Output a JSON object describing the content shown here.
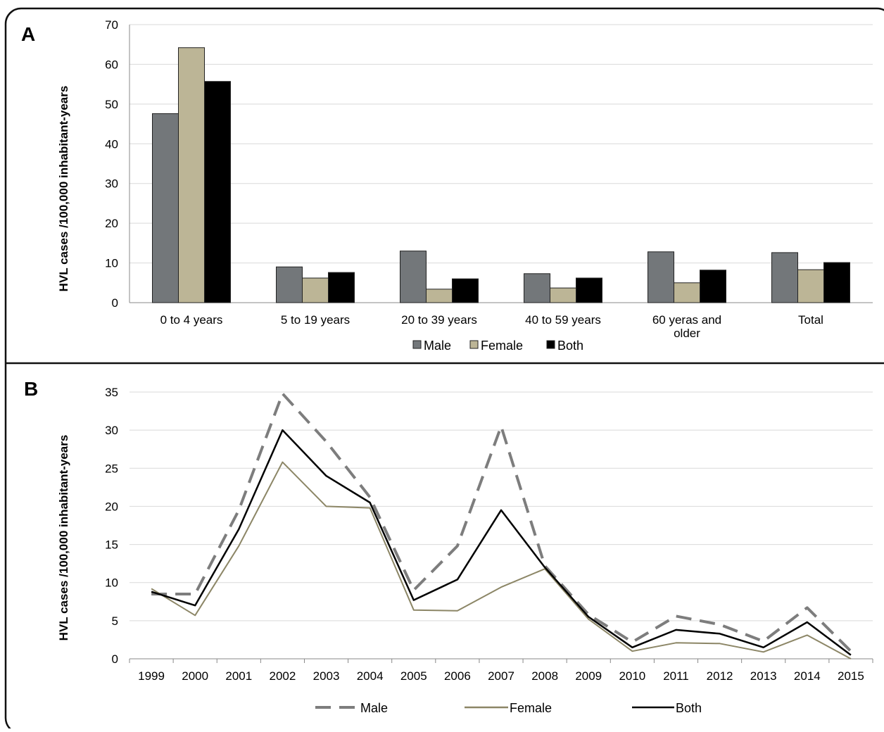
{
  "panels": [
    {
      "letter": "A",
      "chart_data": {
        "type": "bar",
        "categories": [
          "0 to 4 years",
          "5 to 19 years",
          "20 to 39 years",
          "40 to 59 years",
          "60 yeras and older",
          "Total"
        ],
        "category_lines": [
          [
            "0 to 4 years"
          ],
          [
            "5 to 19 years"
          ],
          [
            "20 to 39 years"
          ],
          [
            "40 to 59 years"
          ],
          [
            "60 yeras and",
            "older"
          ],
          [
            "Total"
          ]
        ],
        "series": [
          {
            "name": "Male",
            "color": "#73777a",
            "values": [
              47.6,
              9.0,
              13.0,
              7.3,
              12.8,
              12.6
            ]
          },
          {
            "name": "Female",
            "color": "#bcb596",
            "values": [
              64.2,
              6.2,
              3.4,
              3.7,
              5.0,
              8.3
            ]
          },
          {
            "name": "Both",
            "color": "#000000",
            "values": [
              55.7,
              7.6,
              6.0,
              6.2,
              8.2,
              10.1
            ]
          }
        ],
        "ylabel": "HVL cases /100,000 inhabitant-years",
        "ylim": [
          0,
          70
        ],
        "yticks": [
          0,
          10,
          20,
          30,
          40,
          50,
          60,
          70
        ],
        "grid": true,
        "legend_position": "bottom"
      }
    },
    {
      "letter": "B",
      "chart_data": {
        "type": "line",
        "x": [
          "1999",
          "2000",
          "2001",
          "2002",
          "2003",
          "2004",
          "2005",
          "2006",
          "2007",
          "2008",
          "2009",
          "2010",
          "2011",
          "2012",
          "2013",
          "2014",
          "2015"
        ],
        "series": [
          {
            "name": "Male",
            "color": "#7d7d7d",
            "style": "dashed",
            "values": [
              8.5,
              8.5,
              19.5,
              34.8,
              28.5,
              21.2,
              9.0,
              14.8,
              30.5,
              12.2,
              5.8,
              2.2,
              5.6,
              4.5,
              2.3,
              6.7,
              1.0
            ]
          },
          {
            "name": "Female",
            "color": "#8c8666",
            "style": "solid",
            "values": [
              9.2,
              5.7,
              14.8,
              25.8,
              20.0,
              19.8,
              6.4,
              6.3,
              9.4,
              11.8,
              5.2,
              1.0,
              2.1,
              2.0,
              0.9,
              3.1,
              0.0
            ]
          },
          {
            "name": "Both",
            "color": "#000000",
            "style": "solid",
            "values": [
              8.8,
              7.0,
              17.0,
              30.0,
              24.0,
              20.5,
              7.7,
              10.4,
              19.5,
              12.0,
              5.5,
              1.5,
              3.8,
              3.3,
              1.5,
              4.8,
              0.5
            ]
          }
        ],
        "ylabel": "HVL cases /100,000 inhabitant-years",
        "ylim": [
          0,
          35
        ],
        "yticks": [
          0,
          5,
          10,
          15,
          20,
          25,
          30,
          35
        ],
        "grid": true,
        "legend_position": "bottom"
      }
    }
  ]
}
